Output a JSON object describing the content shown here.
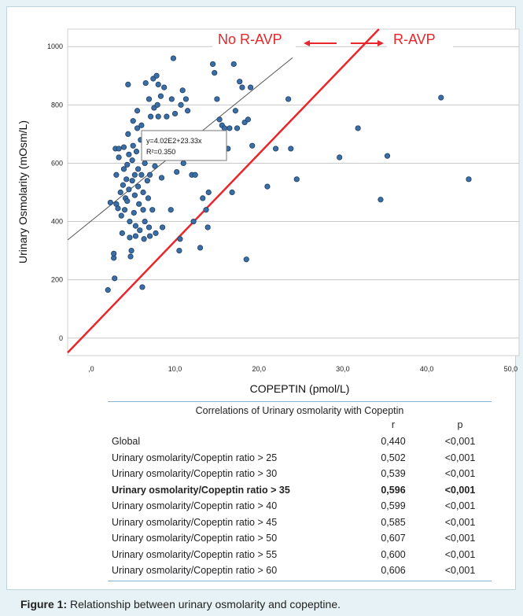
{
  "chart_data": {
    "type": "scatter",
    "title": "",
    "xlabel": "COPEPTIN (pmol/L)",
    "ylabel": "Urinary Osmolarity (mOsm/L)",
    "xlim": [
      -2.8,
      51
    ],
    "ylim": [
      -60,
      1060
    ],
    "x_ticks": [
      0,
      10,
      20,
      30,
      40,
      50
    ],
    "x_tick_labels": [
      ",0",
      "10,0",
      "20,0",
      "30,0",
      "40,0",
      "50,0"
    ],
    "y_ticks": [
      0,
      200,
      400,
      600,
      800,
      1000
    ],
    "y_tick_labels": [
      "0",
      "200",
      "400",
      "600",
      "800",
      "1000"
    ],
    "grid": "horizontal",
    "regression_equation": "y=4.02E2+23.33x",
    "r_squared": "R²=0.350",
    "regression": {
      "intercept": 402,
      "slope": 23.33,
      "x_range": [
        -2.8,
        24
      ]
    },
    "threshold_line": {
      "label_left": "No R-AVP",
      "label_right": "R-AVP",
      "color": "#e8262b",
      "points": [
        [
          -2.8,
          -50
        ],
        [
          34.3,
          1060
        ]
      ]
    },
    "point_color": "#3a6ea5",
    "points": [
      [
        2.0,
        165
      ],
      [
        2.3,
        465
      ],
      [
        2.7,
        275
      ],
      [
        2.7,
        290
      ],
      [
        2.8,
        205
      ],
      [
        2.9,
        650
      ],
      [
        3.0,
        460
      ],
      [
        3.0,
        560
      ],
      [
        3.2,
        445
      ],
      [
        3.3,
        620
      ],
      [
        3.3,
        650
      ],
      [
        3.5,
        500
      ],
      [
        3.6,
        420
      ],
      [
        3.7,
        360
      ],
      [
        3.8,
        525
      ],
      [
        3.9,
        580
      ],
      [
        3.9,
        655
      ],
      [
        4.0,
        440
      ],
      [
        4.1,
        480
      ],
      [
        4.2,
        545
      ],
      [
        4.3,
        470
      ],
      [
        4.3,
        595
      ],
      [
        4.4,
        870
      ],
      [
        4.4,
        700
      ],
      [
        4.5,
        630
      ],
      [
        4.5,
        510
      ],
      [
        4.6,
        345
      ],
      [
        4.6,
        400
      ],
      [
        4.7,
        280
      ],
      [
        4.8,
        300
      ],
      [
        4.9,
        540
      ],
      [
        4.9,
        610
      ],
      [
        5.0,
        660
      ],
      [
        5.0,
        745
      ],
      [
        5.1,
        430
      ],
      [
        5.2,
        490
      ],
      [
        5.2,
        560
      ],
      [
        5.3,
        385
      ],
      [
        5.3,
        350
      ],
      [
        5.4,
        640
      ],
      [
        5.5,
        720
      ],
      [
        5.5,
        780
      ],
      [
        5.6,
        580
      ],
      [
        5.6,
        520
      ],
      [
        5.7,
        460
      ],
      [
        5.8,
        370
      ],
      [
        5.9,
        680
      ],
      [
        6.0,
        730
      ],
      [
        6.0,
        560
      ],
      [
        6.1,
        175
      ],
      [
        6.2,
        500
      ],
      [
        6.2,
        440
      ],
      [
        6.3,
        340
      ],
      [
        6.4,
        600
      ],
      [
        6.4,
        400
      ],
      [
        6.5,
        875
      ],
      [
        6.5,
        700
      ],
      [
        6.6,
        650
      ],
      [
        6.7,
        540
      ],
      [
        6.8,
        480
      ],
      [
        6.9,
        820
      ],
      [
        6.9,
        380
      ],
      [
        7.0,
        350
      ],
      [
        7.0,
        560
      ],
      [
        7.1,
        760
      ],
      [
        7.2,
        620
      ],
      [
        7.3,
        440
      ],
      [
        7.4,
        890
      ],
      [
        7.5,
        790
      ],
      [
        7.5,
        690
      ],
      [
        7.6,
        590
      ],
      [
        7.7,
        360
      ],
      [
        7.8,
        900
      ],
      [
        7.9,
        800
      ],
      [
        8.0,
        870
      ],
      [
        8.0,
        760
      ],
      [
        8.2,
        650
      ],
      [
        8.3,
        830
      ],
      [
        8.4,
        550
      ],
      [
        8.5,
        380
      ],
      [
        8.7,
        860
      ],
      [
        9.0,
        760
      ],
      [
        9.5,
        440
      ],
      [
        9.6,
        820
      ],
      [
        9.8,
        960
      ],
      [
        10.0,
        770
      ],
      [
        10.2,
        570
      ],
      [
        10.5,
        300
      ],
      [
        10.6,
        340
      ],
      [
        10.7,
        800
      ],
      [
        10.9,
        850
      ],
      [
        11.0,
        600
      ],
      [
        11.3,
        820
      ],
      [
        11.5,
        780
      ],
      [
        11.8,
        660
      ],
      [
        12.0,
        560
      ],
      [
        12.2,
        400
      ],
      [
        12.4,
        560
      ],
      [
        12.7,
        680
      ],
      [
        13.0,
        310
      ],
      [
        13.3,
        480
      ],
      [
        13.5,
        700
      ],
      [
        13.7,
        440
      ],
      [
        13.9,
        380
      ],
      [
        14.0,
        500
      ],
      [
        14.3,
        700
      ],
      [
        14.5,
        940
      ],
      [
        14.7,
        910
      ],
      [
        15.0,
        820
      ],
      [
        15.3,
        750
      ],
      [
        15.6,
        730
      ],
      [
        15.9,
        720
      ],
      [
        16.3,
        650
      ],
      [
        16.5,
        720
      ],
      [
        16.8,
        500
      ],
      [
        17.0,
        940
      ],
      [
        17.2,
        780
      ],
      [
        17.4,
        720
      ],
      [
        17.7,
        880
      ],
      [
        18.0,
        860
      ],
      [
        18.3,
        740
      ],
      [
        18.5,
        270
      ],
      [
        18.7,
        750
      ],
      [
        19.0,
        860
      ],
      [
        19.2,
        660
      ],
      [
        21.0,
        520
      ],
      [
        22.0,
        650
      ],
      [
        23.5,
        820
      ],
      [
        23.8,
        650
      ],
      [
        24.5,
        545
      ],
      [
        29.6,
        620
      ],
      [
        31.8,
        720
      ],
      [
        34.5,
        475
      ],
      [
        35.3,
        625
      ],
      [
        41.7,
        825
      ],
      [
        45.0,
        545
      ]
    ]
  },
  "table": {
    "title": "Correlations of Urinary osmolarity with Copeptin",
    "col_r": "r",
    "col_p": "p",
    "rows": [
      {
        "label": "Global",
        "r": "0,440",
        "p": "<0,001",
        "bold": false
      },
      {
        "label": "Urinary osmolarity/Copeptin ratio > 25",
        "r": "0,502",
        "p": "<0,001",
        "bold": false
      },
      {
        "label": "Urinary osmolarity/Copeptin ratio > 30",
        "r": "0,539",
        "p": "<0,001",
        "bold": false
      },
      {
        "label": "Urinary osmolarity/Copeptin ratio > 35",
        "r": "0,596",
        "p": "<0,001",
        "bold": true
      },
      {
        "label": "Urinary osmolarity/Copeptin ratio > 40",
        "r": "0,599",
        "p": "<0,001",
        "bold": false
      },
      {
        "label": "Urinary osmolarity/Copeptin ratio > 45",
        "r": "0,585",
        "p": "<0,001",
        "bold": false
      },
      {
        "label": "Urinary osmolarity/Copeptin ratio > 50",
        "r": "0,607",
        "p": "<0,001",
        "bold": false
      },
      {
        "label": "Urinary osmolarity/Copeptin ratio > 55",
        "r": "0,600",
        "p": "<0,001",
        "bold": false
      },
      {
        "label": "Urinary osmolarity/Copeptin ratio > 60",
        "r": "0,606",
        "p": "<0,001",
        "bold": false
      }
    ]
  },
  "caption": {
    "label": "Figure 1:",
    "text": " Relationship between urinary osmolarity and copeptine."
  }
}
